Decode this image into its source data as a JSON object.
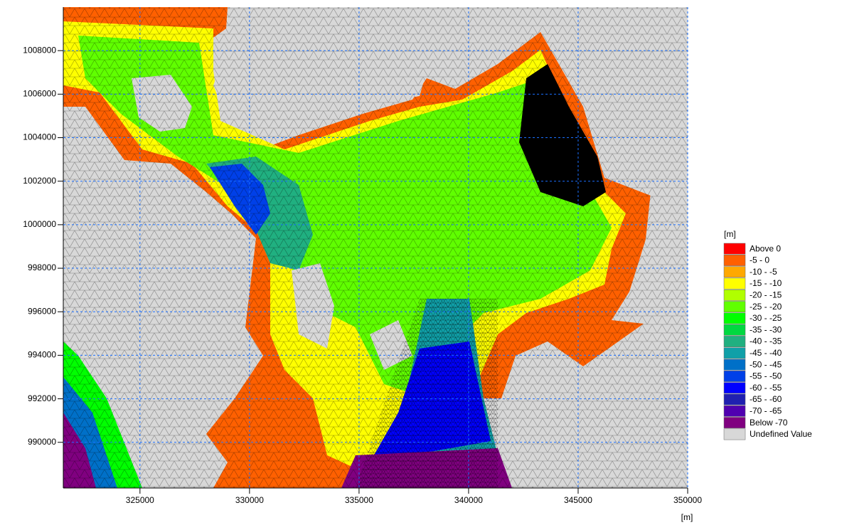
{
  "chart_data": {
    "type": "mesh-map",
    "x_label": "[m]",
    "xlim": [
      321500,
      350000
    ],
    "ylim": [
      987900,
      1010000
    ],
    "xticks": [
      325000,
      330000,
      335000,
      340000,
      345000,
      350000
    ],
    "yticks": [
      990000,
      992000,
      994000,
      996000,
      998000,
      1000000,
      1002000,
      1004000,
      1006000,
      1008000
    ],
    "grid": true,
    "legend": {
      "title": "[m]",
      "items": [
        {
          "label": "Above 0",
          "color": "#ff0000"
        },
        {
          "label": "-5 - 0",
          "color": "#ff6000"
        },
        {
          "label": "-10 - -5",
          "color": "#ffa800"
        },
        {
          "label": "-15 - -10",
          "color": "#ffff00"
        },
        {
          "label": "-20 - -15",
          "color": "#b0ff00"
        },
        {
          "label": "-25 - -20",
          "color": "#60ff00"
        },
        {
          "label": "-30 - -25",
          "color": "#00ff00"
        },
        {
          "label": "-35 - -30",
          "color": "#00d840"
        },
        {
          "label": "-40 - -35",
          "color": "#20b080"
        },
        {
          "label": "-45 - -40",
          "color": "#10a0a8"
        },
        {
          "label": "-50 - -45",
          "color": "#0070c8"
        },
        {
          "label": "-55 - -50",
          "color": "#0040e8"
        },
        {
          "label": "-60 - -55",
          "color": "#0000ff"
        },
        {
          "label": "-65 - -60",
          "color": "#2020b0"
        },
        {
          "label": "-70 - -65",
          "color": "#5000b0"
        },
        {
          "label": "Below -70",
          "color": "#800080"
        },
        {
          "label": "Undefined Value",
          "color": "#d8d8d8"
        }
      ]
    }
  }
}
